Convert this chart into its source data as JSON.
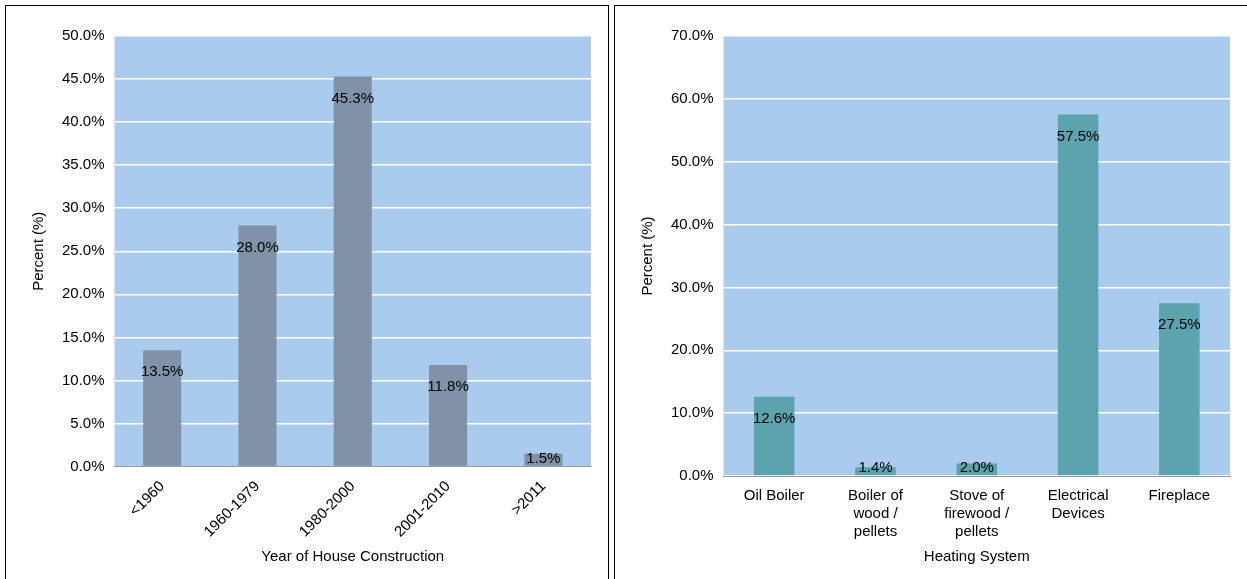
{
  "chart_data": [
    {
      "type": "bar",
      "xlabel": "Year of House Construction",
      "ylabel": "Percent (%)",
      "categories": [
        "<1960",
        "1960-1979",
        "1980-2000",
        "2001-2010",
        ">2011"
      ],
      "values": [
        13.5,
        28.0,
        45.3,
        11.8,
        1.5
      ],
      "value_labels": [
        "13.5%",
        "28.0%",
        "45.3%",
        "11.8%",
        "1.5%"
      ],
      "color": "#8091a8",
      "ylim": [
        0,
        50
      ],
      "yticks": [
        {
          "value": 0,
          "label": "0.0%"
        },
        {
          "value": 5,
          "label": "5.0%"
        },
        {
          "value": 10,
          "label": "10.0%"
        },
        {
          "value": 15,
          "label": "15.0%"
        },
        {
          "value": 20,
          "label": "20.0%"
        },
        {
          "value": 25,
          "label": "25.0%"
        },
        {
          "value": 30,
          "label": "30.0%"
        },
        {
          "value": 35,
          "label": "35.0%"
        },
        {
          "value": 40,
          "label": "40.0%"
        },
        {
          "value": 45,
          "label": "45.0%"
        },
        {
          "value": 50,
          "label": "50.0%"
        }
      ],
      "grid": "y",
      "legend": false
    },
    {
      "type": "bar",
      "xlabel": "Heating System",
      "ylabel": "Percent (%)",
      "categories": [
        "Oil Boiler",
        "Boiler of wood / pellets",
        "Stove of firewood / pellets",
        "Electrical Devices",
        "Fireplace"
      ],
      "values": [
        12.6,
        1.4,
        2.0,
        57.5,
        27.5
      ],
      "value_labels": [
        "12.6%",
        "1.4%",
        "2.0%",
        "57.5%",
        "27.5%"
      ],
      "color": "#5ba3ad",
      "ylim": [
        0,
        70
      ],
      "yticks": [
        {
          "value": 0,
          "label": "0.0%"
        },
        {
          "value": 10,
          "label": "10.0%"
        },
        {
          "value": 20,
          "label": "20.0%"
        },
        {
          "value": 30,
          "label": "30.0%"
        },
        {
          "value": 40,
          "label": "40.0%"
        },
        {
          "value": 50,
          "label": "50.0%"
        },
        {
          "value": 60,
          "label": "60.0%"
        },
        {
          "value": 70,
          "label": "70.0%"
        }
      ],
      "grid": "y",
      "legend": false
    }
  ]
}
